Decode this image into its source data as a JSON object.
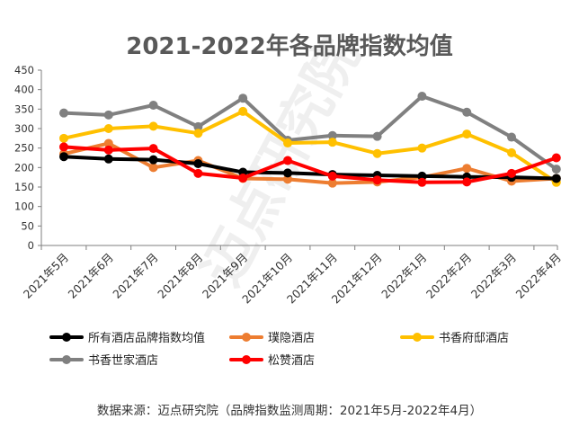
{
  "chart_data": {
    "type": "line",
    "title": "2021-2022年各品牌指数均值",
    "categories": [
      "2021年5月",
      "2021年6月",
      "2021年7月",
      "2021年8月",
      "2021年9月",
      "2021年10月",
      "2021年11月",
      "2021年12月",
      "2022年1月",
      "2022年2月",
      "2022年3月",
      "2022年4月"
    ],
    "ylim": [
      0,
      450
    ],
    "yticks": [
      0,
      50,
      100,
      150,
      200,
      250,
      300,
      350,
      400,
      450
    ],
    "grid": false,
    "legend_position": "bottom",
    "series": [
      {
        "name": "所有酒店品牌指数均值",
        "color": "#000000",
        "values": [
          228,
          222,
          220,
          210,
          188,
          186,
          182,
          180,
          178,
          176,
          175,
          172
        ]
      },
      {
        "name": "璞隐酒店",
        "color": "#ED7D31",
        "values": [
          235,
          262,
          200,
          218,
          172,
          170,
          160,
          163,
          175,
          198,
          165,
          172
        ]
      },
      {
        "name": "书香府邸酒店",
        "color": "#FFC000",
        "values": [
          275,
          300,
          306,
          288,
          344,
          263,
          265,
          236,
          250,
          286,
          238,
          162
        ]
      },
      {
        "name": "书香世家酒店",
        "color": "#808080",
        "values": [
          340,
          335,
          360,
          305,
          378,
          270,
          282,
          280,
          383,
          342,
          278,
          196
        ]
      },
      {
        "name": "松赞酒店",
        "color": "#FF0000",
        "values": [
          253,
          245,
          249,
          185,
          173,
          218,
          178,
          168,
          162,
          163,
          185,
          225
        ]
      }
    ]
  },
  "watermark": "迈点研究院",
  "source_note": "数据来源：迈点研究院（品牌指数监测周期：2021年5月-2022年4月）"
}
